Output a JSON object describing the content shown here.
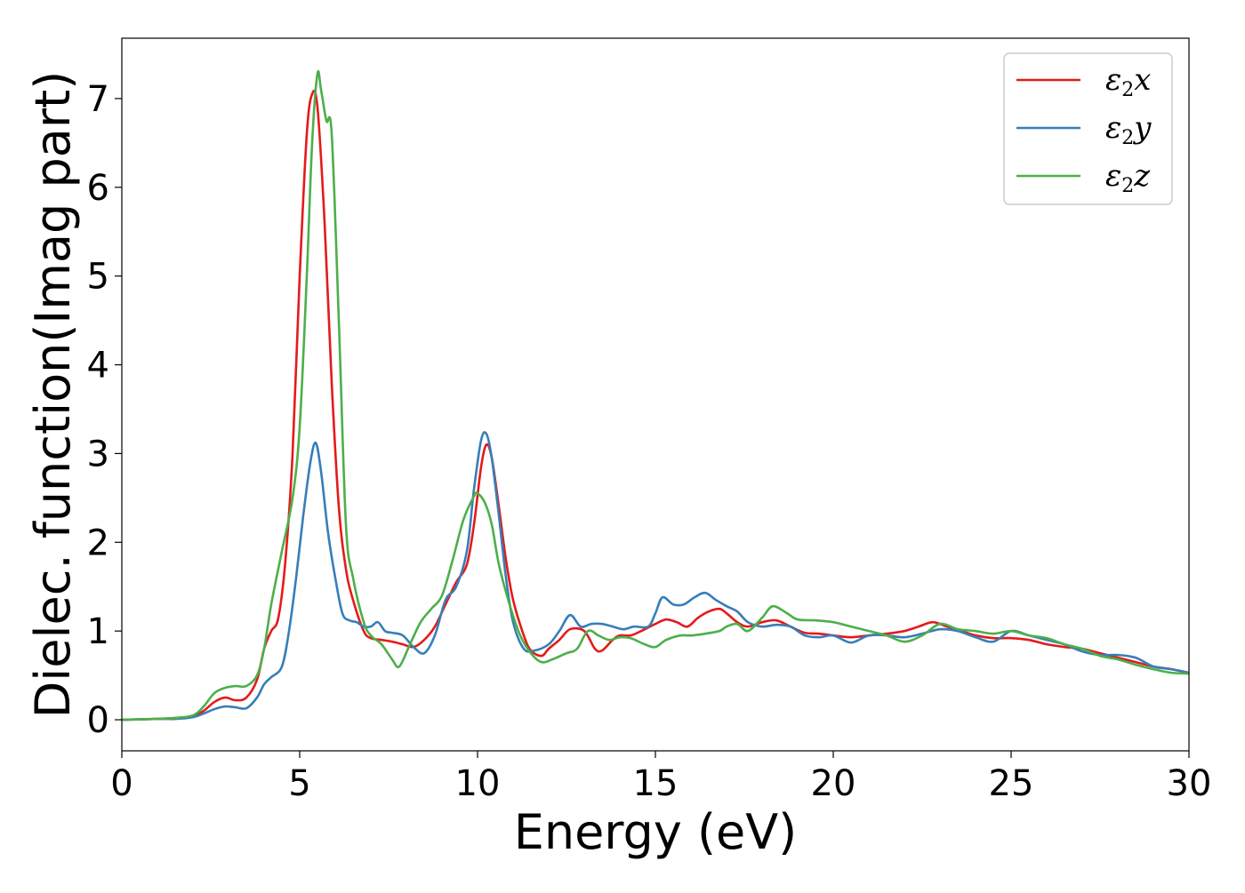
{
  "chart_data": {
    "type": "line",
    "title": "",
    "xlabel": "Energy (eV)",
    "ylabel": "Dielec. function(Imag part)",
    "xlim": [
      0,
      30
    ],
    "ylim": [
      -0.35,
      7.68
    ],
    "xticks": [
      0,
      5,
      10,
      15,
      20,
      25,
      30
    ],
    "yticks": [
      0,
      1,
      2,
      3,
      4,
      5,
      6,
      7
    ],
    "grid": false,
    "legend_position": "top-right",
    "series": [
      {
        "name": "ε2x",
        "legend_base": "ε",
        "legend_sub": "2",
        "legend_suffix": "x",
        "color": "#e41a1c",
        "x": [
          0,
          1,
          1.5,
          2,
          2.3,
          2.6,
          2.9,
          3.2,
          3.5,
          3.8,
          4.0,
          4.2,
          4.4,
          4.6,
          4.8,
          5.0,
          5.2,
          5.35,
          5.5,
          5.7,
          5.9,
          6.1,
          6.3,
          6.5,
          6.8,
          7.0,
          7.3,
          7.6,
          7.9,
          8.2,
          8.5,
          8.8,
          9.1,
          9.4,
          9.7,
          9.9,
          10.1,
          10.25,
          10.4,
          10.6,
          10.8,
          11.0,
          11.3,
          11.5,
          11.8,
          12.0,
          12.3,
          12.6,
          13.0,
          13.3,
          13.5,
          13.8,
          14.0,
          14.3,
          14.6,
          15.0,
          15.3,
          15.6,
          15.9,
          16.2,
          16.5,
          16.8,
          17.0,
          17.3,
          17.6,
          18.0,
          18.4,
          18.8,
          19.2,
          19.6,
          20.0,
          20.5,
          21.0,
          21.5,
          22.0,
          22.4,
          22.8,
          23.2,
          23.6,
          24.0,
          24.5,
          25.0,
          25.5,
          26.0,
          26.5,
          27.0,
          27.5,
          28.0,
          28.5,
          29.0,
          29.5,
          30.0
        ],
        "y": [
          0,
          0.01,
          0.02,
          0.04,
          0.1,
          0.2,
          0.25,
          0.22,
          0.25,
          0.45,
          0.8,
          1.0,
          1.15,
          1.8,
          3.0,
          5.0,
          6.6,
          7.05,
          6.9,
          5.6,
          3.8,
          2.4,
          1.7,
          1.35,
          1.0,
          0.92,
          0.9,
          0.88,
          0.85,
          0.82,
          0.9,
          1.05,
          1.3,
          1.55,
          1.75,
          2.2,
          2.85,
          3.1,
          2.95,
          2.4,
          1.8,
          1.35,
          0.95,
          0.78,
          0.72,
          0.8,
          0.9,
          1.02,
          1.0,
          0.8,
          0.78,
          0.9,
          0.95,
          0.95,
          1.0,
          1.08,
          1.13,
          1.1,
          1.05,
          1.15,
          1.22,
          1.25,
          1.2,
          1.1,
          1.05,
          1.1,
          1.12,
          1.05,
          0.98,
          0.97,
          0.95,
          0.93,
          0.95,
          0.97,
          1.0,
          1.05,
          1.1,
          1.05,
          1.0,
          0.95,
          0.92,
          0.92,
          0.9,
          0.85,
          0.82,
          0.8,
          0.75,
          0.7,
          0.65,
          0.6,
          0.57,
          0.53
        ]
      },
      {
        "name": "ε2y",
        "legend_base": "ε",
        "legend_sub": "2",
        "legend_suffix": "y",
        "color": "#377eb8",
        "x": [
          0,
          1,
          1.5,
          2,
          2.3,
          2.6,
          2.9,
          3.2,
          3.5,
          3.8,
          4.0,
          4.2,
          4.5,
          4.7,
          4.9,
          5.1,
          5.3,
          5.45,
          5.6,
          5.8,
          6.0,
          6.2,
          6.4,
          6.6,
          6.8,
          7.0,
          7.2,
          7.4,
          7.6,
          7.9,
          8.2,
          8.5,
          8.8,
          9.1,
          9.4,
          9.7,
          9.9,
          10.1,
          10.25,
          10.4,
          10.6,
          10.8,
          11.0,
          11.3,
          11.6,
          12.0,
          12.3,
          12.6,
          12.9,
          13.2,
          13.5,
          13.8,
          14.1,
          14.4,
          14.8,
          15.0,
          15.2,
          15.5,
          15.8,
          16.1,
          16.4,
          16.7,
          17.0,
          17.3,
          17.6,
          18.0,
          18.4,
          18.8,
          19.2,
          19.6,
          20.0,
          20.5,
          21.0,
          21.5,
          22.0,
          22.5,
          23.0,
          23.5,
          24.0,
          24.5,
          25.0,
          25.5,
          26.0,
          26.5,
          27.0,
          27.5,
          28.0,
          28.5,
          29.0,
          29.5,
          30.0
        ],
        "y": [
          0,
          0.01,
          0.01,
          0.03,
          0.07,
          0.12,
          0.15,
          0.14,
          0.13,
          0.25,
          0.4,
          0.48,
          0.6,
          1.0,
          1.6,
          2.3,
          2.9,
          3.12,
          2.8,
          2.1,
          1.6,
          1.2,
          1.12,
          1.1,
          1.05,
          1.05,
          1.1,
          1.0,
          0.98,
          0.95,
          0.82,
          0.75,
          0.95,
          1.35,
          1.5,
          1.9,
          2.6,
          3.15,
          3.22,
          2.95,
          2.3,
          1.6,
          1.1,
          0.8,
          0.78,
          0.85,
          1.0,
          1.18,
          1.05,
          1.08,
          1.08,
          1.05,
          1.02,
          1.05,
          1.05,
          1.2,
          1.38,
          1.3,
          1.3,
          1.38,
          1.43,
          1.35,
          1.28,
          1.22,
          1.1,
          1.05,
          1.07,
          1.05,
          0.95,
          0.93,
          0.95,
          0.87,
          0.95,
          0.95,
          0.93,
          0.97,
          1.02,
          1.0,
          0.93,
          0.88,
          1.0,
          0.95,
          0.9,
          0.85,
          0.77,
          0.73,
          0.73,
          0.7,
          0.6,
          0.57,
          0.53
        ]
      },
      {
        "name": "ε2z",
        "legend_base": "ε",
        "legend_sub": "2",
        "legend_suffix": "z",
        "color": "#4daf4a",
        "x": [
          0,
          1,
          1.5,
          2,
          2.3,
          2.6,
          2.9,
          3.2,
          3.5,
          3.8,
          4.0,
          4.2,
          4.5,
          4.8,
          5.0,
          5.2,
          5.35,
          5.5,
          5.6,
          5.75,
          5.9,
          6.1,
          6.3,
          6.5,
          6.8,
          7.0,
          7.3,
          7.6,
          7.8,
          8.1,
          8.4,
          8.7,
          9.0,
          9.3,
          9.6,
          9.9,
          10.0,
          10.2,
          10.4,
          10.6,
          10.9,
          11.2,
          11.5,
          11.8,
          12.1,
          12.5,
          12.8,
          13.1,
          13.4,
          13.7,
          14.0,
          14.3,
          14.7,
          15.0,
          15.3,
          15.7,
          16.0,
          16.4,
          16.8,
          17.0,
          17.3,
          17.6,
          18.0,
          18.3,
          18.7,
          19.0,
          19.5,
          20.0,
          20.5,
          21.0,
          21.5,
          22.0,
          22.5,
          23.0,
          23.5,
          24.0,
          24.5,
          25.0,
          25.5,
          26.0,
          26.5,
          27.0,
          27.5,
          28.0,
          28.5,
          29.0,
          29.5,
          30.0
        ],
        "y": [
          0,
          0.01,
          0.02,
          0.05,
          0.15,
          0.3,
          0.36,
          0.38,
          0.38,
          0.5,
          0.8,
          1.3,
          1.9,
          2.5,
          3.3,
          5.0,
          6.5,
          7.28,
          7.1,
          6.75,
          6.6,
          4.5,
          2.2,
          1.6,
          1.1,
          0.95,
          0.85,
          0.68,
          0.6,
          0.85,
          1.1,
          1.25,
          1.4,
          1.8,
          2.25,
          2.52,
          2.55,
          2.45,
          2.2,
          1.75,
          1.3,
          0.95,
          0.75,
          0.65,
          0.68,
          0.75,
          0.8,
          1.0,
          0.95,
          0.9,
          0.93,
          0.92,
          0.85,
          0.82,
          0.9,
          0.95,
          0.95,
          0.97,
          1.0,
          1.05,
          1.08,
          1.0,
          1.15,
          1.28,
          1.2,
          1.13,
          1.12,
          1.1,
          1.05,
          1.0,
          0.95,
          0.88,
          0.95,
          1.08,
          1.02,
          1.0,
          0.97,
          1.0,
          0.95,
          0.92,
          0.85,
          0.8,
          0.72,
          0.68,
          0.62,
          0.57,
          0.53,
          0.52
        ]
      }
    ]
  }
}
